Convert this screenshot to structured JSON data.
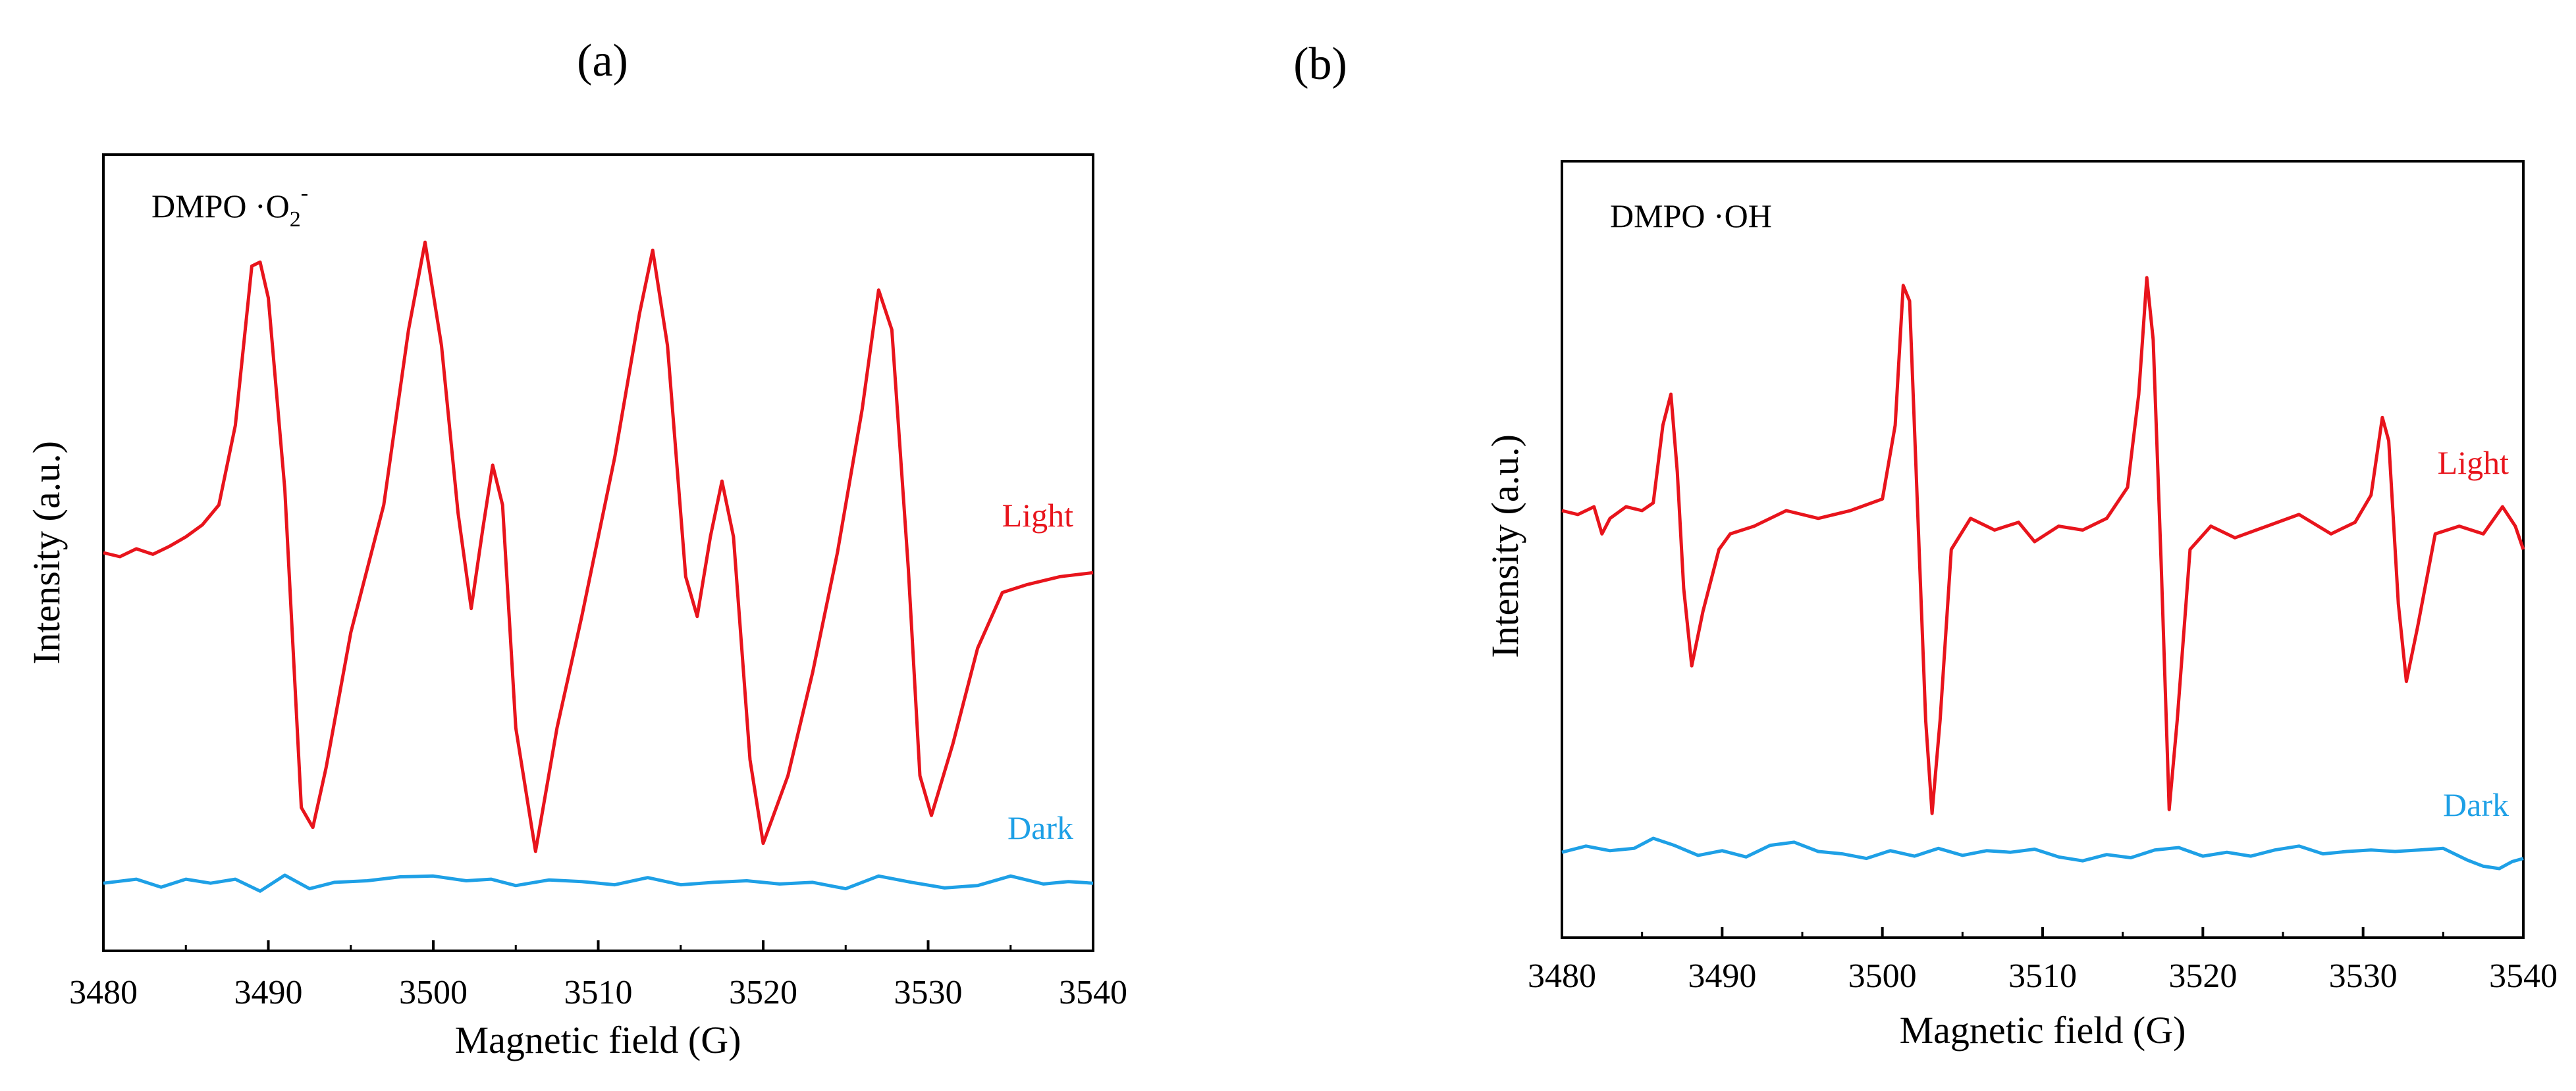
{
  "figure": {
    "panels": [
      "(a)",
      "(b)"
    ]
  },
  "colors": {
    "light": "#e8141c",
    "dark": "#1ea0e6",
    "axis": "#000000"
  },
  "chart_data": [
    {
      "type": "line",
      "panel": "(a)",
      "annotation": {
        "base": "DMPO ·O",
        "sub": "2",
        "sup": "-"
      },
      "xlabel": "Magnetic field (G)",
      "ylabel": "Intensity (a.u.)",
      "xlim": [
        3480,
        3540
      ],
      "ylim": [
        0,
        100
      ],
      "xticks": [
        3480,
        3490,
        3500,
        3510,
        3520,
        3530,
        3540
      ],
      "legend_placement": "inline labels right",
      "series": [
        {
          "name": "Light",
          "color": "#e8141c",
          "points": [
            [
              3480,
              50
            ],
            [
              3481,
              49.5
            ],
            [
              3482,
              50.5
            ],
            [
              3483,
              49.8
            ],
            [
              3484,
              50.8
            ],
            [
              3485,
              52
            ],
            [
              3486,
              53.5
            ],
            [
              3487,
              56
            ],
            [
              3488,
              66
            ],
            [
              3489,
              86
            ],
            [
              3489.5,
              86.5
            ],
            [
              3490,
              82
            ],
            [
              3491,
              58
            ],
            [
              3492,
              18
            ],
            [
              3492.7,
              15.5
            ],
            [
              3493.5,
              23
            ],
            [
              3495,
              40
            ],
            [
              3497,
              56
            ],
            [
              3498.5,
              78
            ],
            [
              3499.5,
              89
            ],
            [
              3500.5,
              76
            ],
            [
              3501.5,
              55
            ],
            [
              3502.3,
              43
            ],
            [
              3503,
              53
            ],
            [
              3503.6,
              61
            ],
            [
              3504.2,
              56
            ],
            [
              3505,
              28
            ],
            [
              3506.2,
              12.5
            ],
            [
              3507.5,
              28
            ],
            [
              3509,
              42
            ],
            [
              3511,
              62
            ],
            [
              3512.5,
              80
            ],
            [
              3513.3,
              88
            ],
            [
              3514.2,
              76
            ],
            [
              3515.3,
              47
            ],
            [
              3516,
              42
            ],
            [
              3516.8,
              52
            ],
            [
              3517.5,
              59
            ],
            [
              3518.2,
              52
            ],
            [
              3519.2,
              24
            ],
            [
              3520,
              13.5
            ],
            [
              3521.5,
              22
            ],
            [
              3523,
              35
            ],
            [
              3524.5,
              50
            ],
            [
              3526,
              68
            ],
            [
              3527,
              83
            ],
            [
              3527.8,
              78
            ],
            [
              3528.8,
              48
            ],
            [
              3529.5,
              22
            ],
            [
              3530.2,
              17
            ],
            [
              3531.5,
              26
            ],
            [
              3533,
              38
            ],
            [
              3534.5,
              45
            ],
            [
              3536,
              46
            ],
            [
              3538,
              47
            ],
            [
              3540,
              47.5
            ]
          ]
        },
        {
          "name": "Dark",
          "color": "#1ea0e6",
          "points": [
            [
              3480,
              8.5
            ],
            [
              3482,
              9
            ],
            [
              3483.5,
              8
            ],
            [
              3485,
              9
            ],
            [
              3486.5,
              8.5
            ],
            [
              3488,
              9
            ],
            [
              3489.5,
              7.5
            ],
            [
              3491,
              9.5
            ],
            [
              3492.5,
              7.8
            ],
            [
              3494,
              8.6
            ],
            [
              3496,
              8.8
            ],
            [
              3498,
              9.3
            ],
            [
              3500,
              9.4
            ],
            [
              3502,
              8.8
            ],
            [
              3503.5,
              9
            ],
            [
              3505,
              8.2
            ],
            [
              3507,
              8.9
            ],
            [
              3509,
              8.7
            ],
            [
              3511,
              8.3
            ],
            [
              3513,
              9.2
            ],
            [
              3515,
              8.3
            ],
            [
              3517,
              8.6
            ],
            [
              3519,
              8.8
            ],
            [
              3521,
              8.4
            ],
            [
              3523,
              8.6
            ],
            [
              3525,
              7.8
            ],
            [
              3527,
              9.4
            ],
            [
              3529,
              8.6
            ],
            [
              3531,
              7.9
            ],
            [
              3533,
              8.2
            ],
            [
              3535,
              9.4
            ],
            [
              3537,
              8.4
            ],
            [
              3538.5,
              8.7
            ],
            [
              3540,
              8.5
            ]
          ]
        }
      ]
    },
    {
      "type": "line",
      "panel": "(b)",
      "annotation": {
        "base": "DMPO ·OH"
      },
      "xlabel": "Magnetic field (G)",
      "ylabel": "Intensity (a.u.)",
      "xlim": [
        3480,
        3540
      ],
      "ylim": [
        0,
        100
      ],
      "xticks": [
        3480,
        3490,
        3500,
        3510,
        3520,
        3530,
        3540
      ],
      "legend_placement": "inline labels right",
      "series": [
        {
          "name": "Light",
          "color": "#e8141c",
          "points": [
            [
              3480,
              55
            ],
            [
              3481,
              54.5
            ],
            [
              3482,
              55.5
            ],
            [
              3482.5,
              52
            ],
            [
              3483,
              54
            ],
            [
              3484,
              55.5
            ],
            [
              3485,
              55
            ],
            [
              3485.7,
              56
            ],
            [
              3486.3,
              66
            ],
            [
              3486.8,
              70
            ],
            [
              3487.2,
              60
            ],
            [
              3487.6,
              45
            ],
            [
              3488.1,
              35
            ],
            [
              3488.8,
              42
            ],
            [
              3489.8,
              50
            ],
            [
              3490.5,
              52
            ],
            [
              3492,
              53
            ],
            [
              3494,
              55
            ],
            [
              3496,
              54
            ],
            [
              3498,
              55
            ],
            [
              3500,
              56.5
            ],
            [
              3500.8,
              66
            ],
            [
              3501.3,
              84
            ],
            [
              3501.7,
              82
            ],
            [
              3502.2,
              55
            ],
            [
              3502.7,
              28
            ],
            [
              3503.1,
              16
            ],
            [
              3503.6,
              28
            ],
            [
              3504.3,
              50
            ],
            [
              3505.5,
              54
            ],
            [
              3507,
              52.5
            ],
            [
              3508.5,
              53.5
            ],
            [
              3509.5,
              51
            ],
            [
              3511,
              53
            ],
            [
              3512.5,
              52.5
            ],
            [
              3514,
              54
            ],
            [
              3515.3,
              58
            ],
            [
              3516,
              70
            ],
            [
              3516.5,
              85
            ],
            [
              3516.9,
              77
            ],
            [
              3517.4,
              48
            ],
            [
              3517.9,
              16.5
            ],
            [
              3518.4,
              28
            ],
            [
              3519.2,
              50
            ],
            [
              3520.5,
              53
            ],
            [
              3522,
              51.5
            ],
            [
              3524,
              53
            ],
            [
              3526,
              54.5
            ],
            [
              3528,
              52
            ],
            [
              3529.5,
              53.5
            ],
            [
              3530.5,
              57
            ],
            [
              3531.2,
              67
            ],
            [
              3531.6,
              64
            ],
            [
              3532.2,
              43
            ],
            [
              3532.7,
              33
            ],
            [
              3533.4,
              40
            ],
            [
              3534.5,
              52
            ],
            [
              3536,
              53
            ],
            [
              3537.5,
              52
            ],
            [
              3538.7,
              55.5
            ],
            [
              3539.5,
              53
            ],
            [
              3540,
              50
            ]
          ]
        },
        {
          "name": "Dark",
          "color": "#1ea0e6",
          "points": [
            [
              3480,
              11
            ],
            [
              3481.5,
              11.8
            ],
            [
              3483,
              11.2
            ],
            [
              3484.5,
              11.5
            ],
            [
              3485.7,
              12.8
            ],
            [
              3487,
              11.9
            ],
            [
              3488.5,
              10.6
            ],
            [
              3490,
              11.2
            ],
            [
              3491.5,
              10.4
            ],
            [
              3493,
              11.9
            ],
            [
              3494.5,
              12.3
            ],
            [
              3496,
              11.1
            ],
            [
              3497.5,
              10.8
            ],
            [
              3499,
              10.2
            ],
            [
              3500.5,
              11.2
            ],
            [
              3502,
              10.5
            ],
            [
              3503.5,
              11.5
            ],
            [
              3505,
              10.6
            ],
            [
              3506.5,
              11.2
            ],
            [
              3508,
              11
            ],
            [
              3509.5,
              11.4
            ],
            [
              3511,
              10.4
            ],
            [
              3512.5,
              9.9
            ],
            [
              3514,
              10.7
            ],
            [
              3515.5,
              10.3
            ],
            [
              3517,
              11.3
            ],
            [
              3518.5,
              11.6
            ],
            [
              3520,
              10.5
            ],
            [
              3521.5,
              11
            ],
            [
              3523,
              10.5
            ],
            [
              3524.5,
              11.3
            ],
            [
              3526,
              11.8
            ],
            [
              3527.5,
              10.8
            ],
            [
              3529,
              11.1
            ],
            [
              3530.5,
              11.3
            ],
            [
              3532,
              11.1
            ],
            [
              3533.5,
              11.3
            ],
            [
              3535,
              11.5
            ],
            [
              3536.5,
              10
            ],
            [
              3537.5,
              9.2
            ],
            [
              3538.5,
              8.9
            ],
            [
              3539.3,
              9.8
            ],
            [
              3540,
              10.2
            ]
          ]
        }
      ]
    }
  ]
}
